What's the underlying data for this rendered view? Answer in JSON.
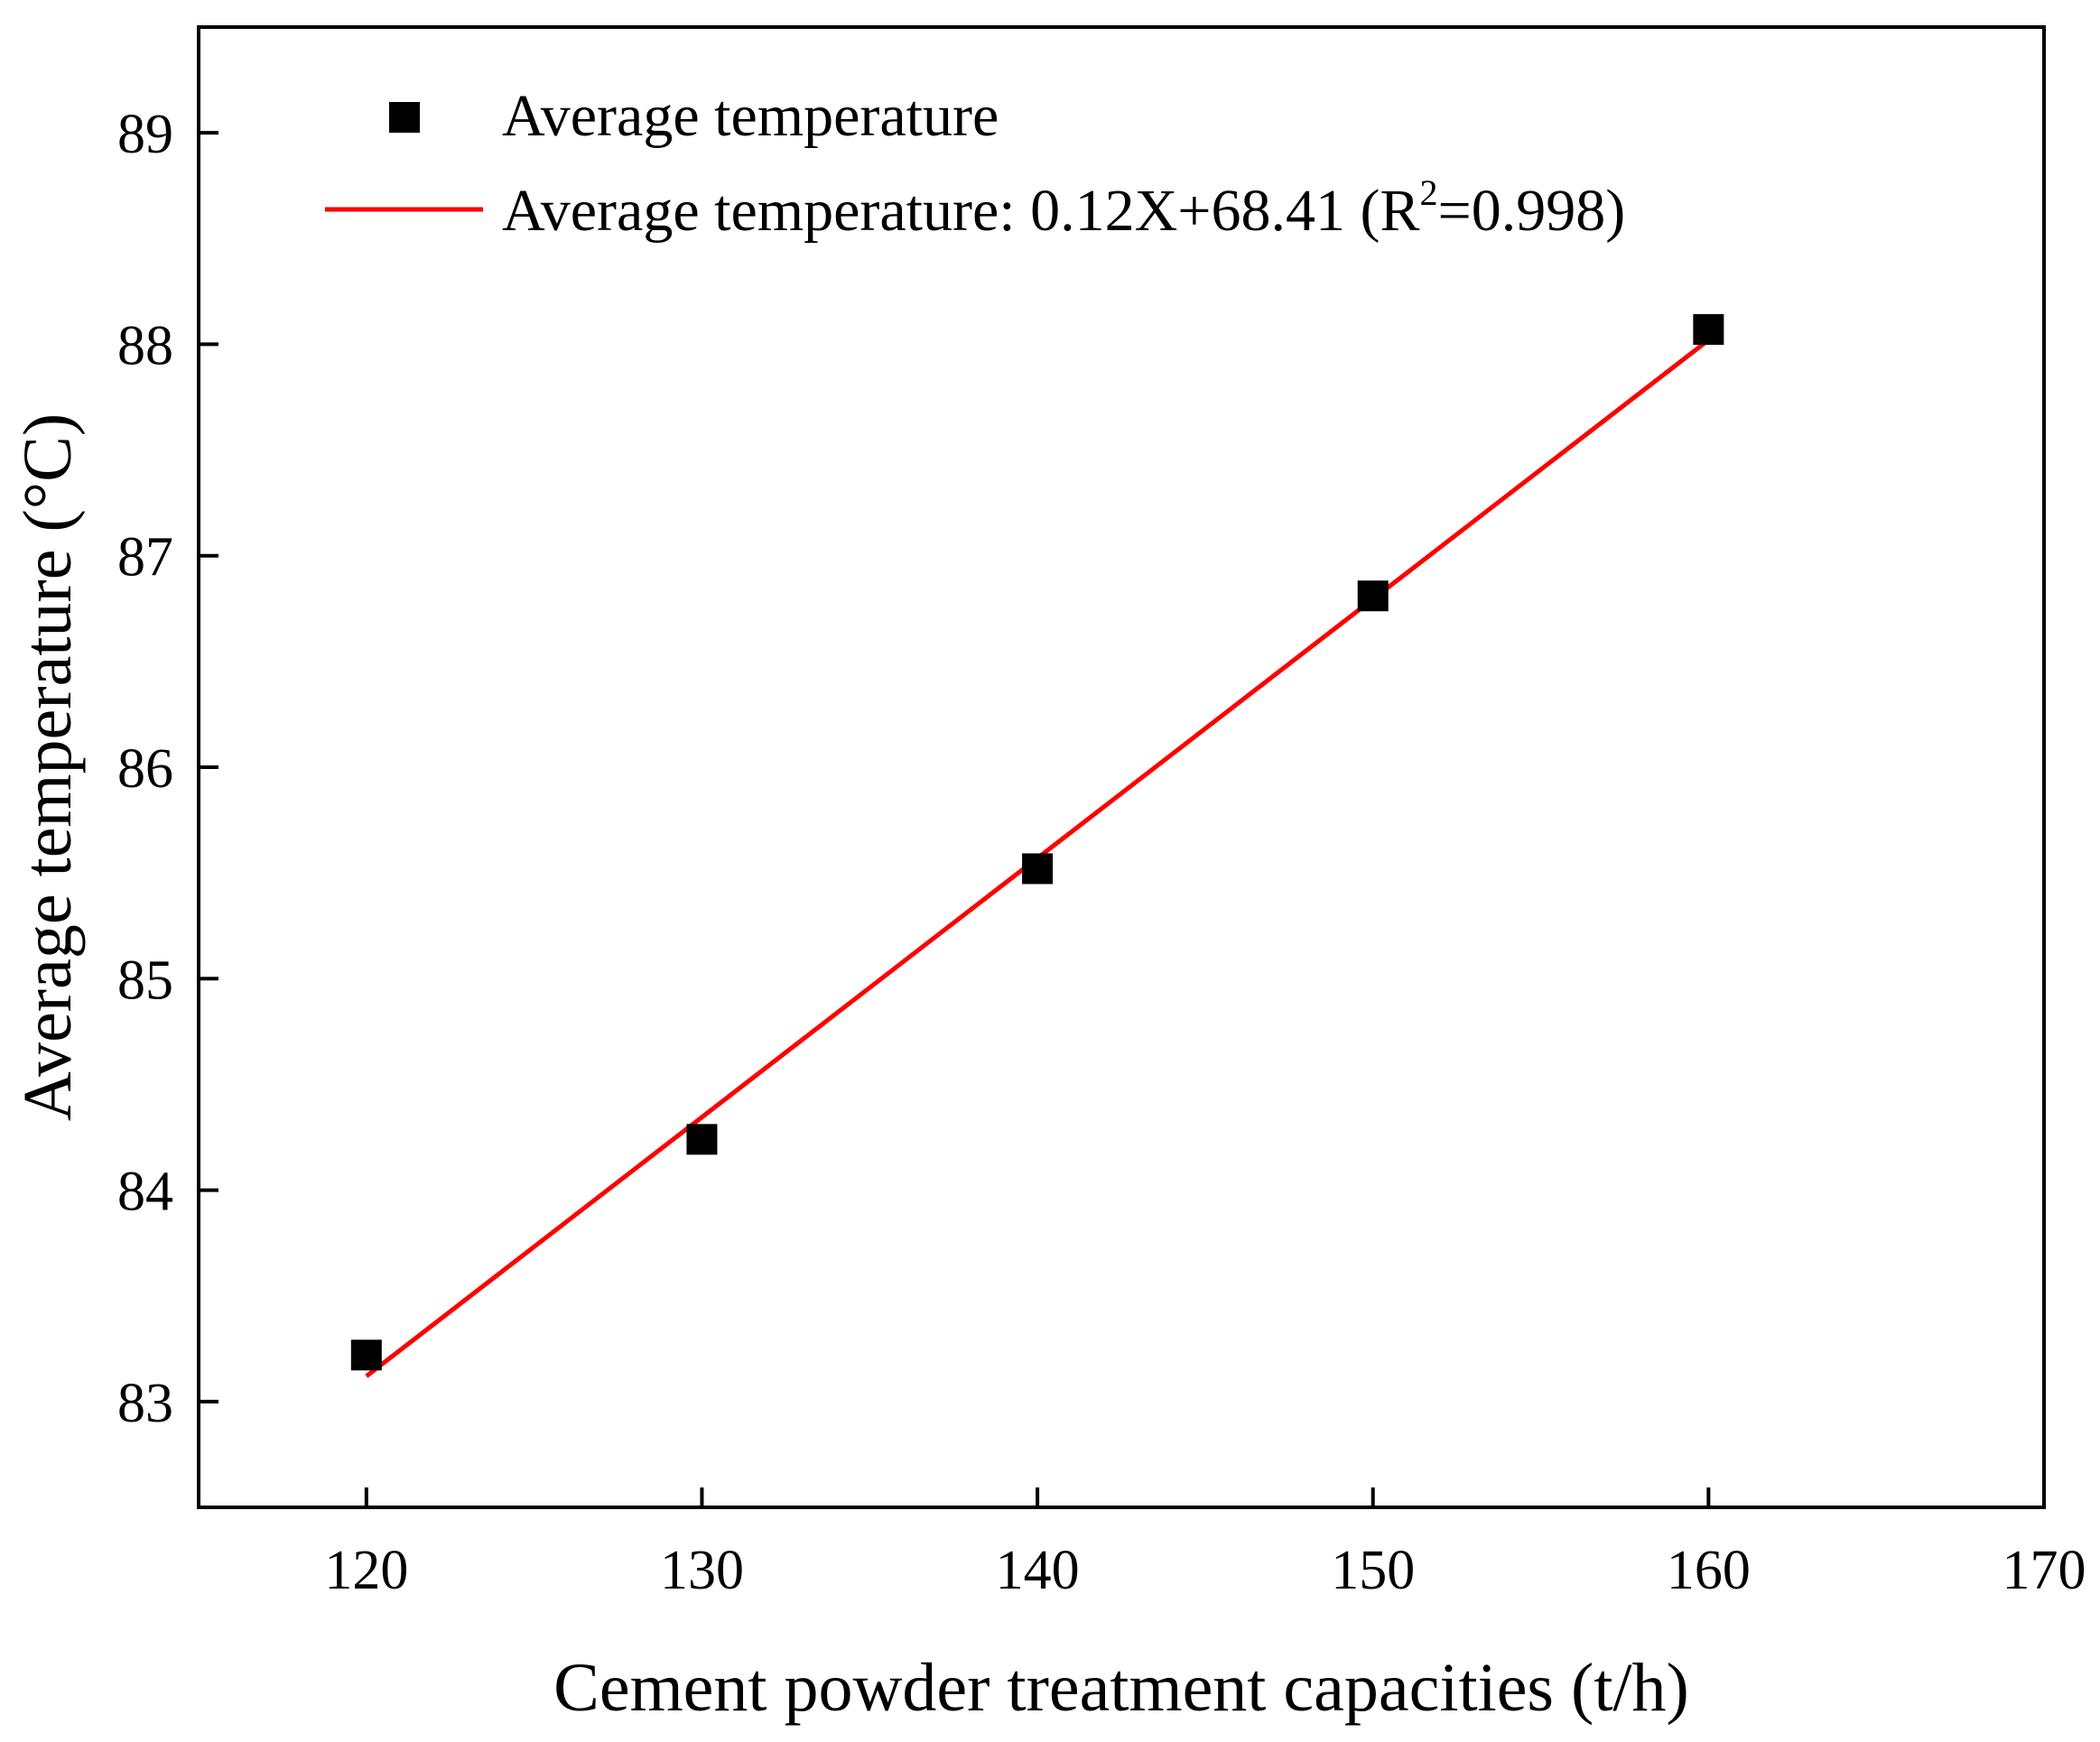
{
  "chart_data": {
    "type": "scatter",
    "title": "",
    "xlabel": "Cement powder treatment capacities (t/h)",
    "ylabel": "Average temperature (°C)",
    "xlim": [
      115,
      170
    ],
    "ylim": [
      82.5,
      89.5
    ],
    "xticks": [
      120,
      130,
      140,
      150,
      160,
      170
    ],
    "yticks": [
      83,
      84,
      85,
      86,
      87,
      88,
      89
    ],
    "grid": false,
    "legend_position": "top-left",
    "series": [
      {
        "name": "Average temperature",
        "kind": "scatter",
        "marker": "square",
        "color": "#000000",
        "x": [
          120,
          130,
          140,
          150,
          160
        ],
        "y": [
          83.22,
          84.24,
          85.52,
          86.81,
          88.07
        ]
      },
      {
        "name": "Average temperature: 0.12X+68.41 (R²=0.998)",
        "kind": "line",
        "color": "#ff0000",
        "x": [
          120,
          160
        ],
        "y": [
          83.12,
          88.02
        ]
      }
    ],
    "legend": {
      "scatter_label": "Average temperature",
      "fit_label_prefix": "Average temperature: 0.12X+68.41 (R",
      "fit_label_sup": "2",
      "fit_label_suffix": "=0.998)"
    }
  }
}
